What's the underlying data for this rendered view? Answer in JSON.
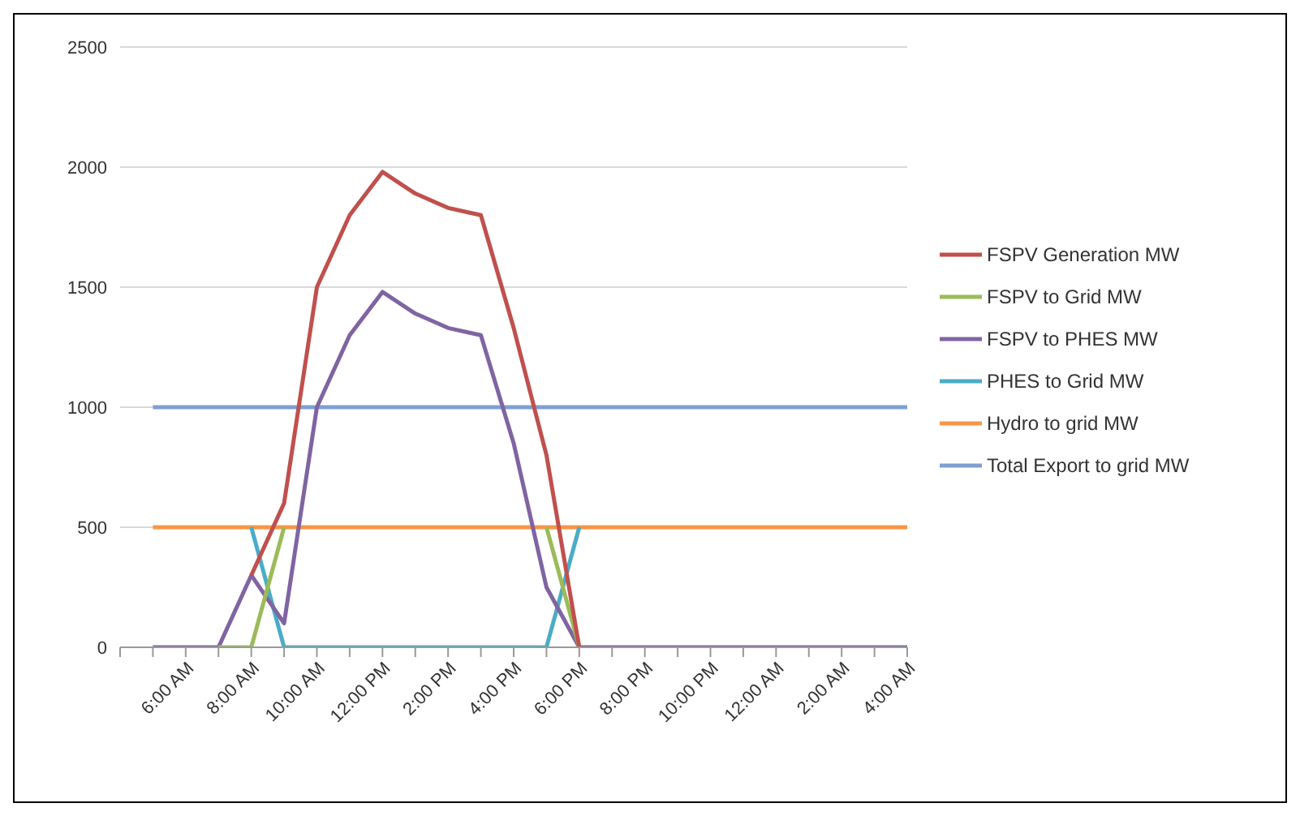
{
  "chart_data": {
    "type": "line",
    "categories": [
      null,
      null,
      "6:00 AM",
      null,
      "8:00 AM",
      null,
      "10:00 AM",
      null,
      "12:00 PM",
      null,
      "2:00 PM",
      null,
      "4:00 PM",
      null,
      "6:00 PM",
      null,
      "8:00 PM",
      null,
      "10:00 PM",
      null,
      "12:00 AM",
      null,
      "2:00 AM",
      null,
      "4:00 AM"
    ],
    "series": [
      {
        "name": "FSPV Generation MW",
        "color": "#c0504d",
        "values": [
          null,
          null,
          null,
          null,
          300,
          600,
          1500,
          1800,
          1980,
          1890,
          1830,
          1800,
          1330,
          800,
          0,
          null,
          null,
          null,
          null,
          null,
          null,
          null,
          null,
          null,
          null
        ]
      },
      {
        "name": "FSPV to Grid MW",
        "color": "#9bbb59",
        "values": [
          null,
          null,
          null,
          0,
          0,
          500,
          null,
          null,
          null,
          null,
          null,
          null,
          null,
          500,
          0,
          null,
          null,
          null,
          null,
          null,
          null,
          null,
          null,
          null,
          null
        ]
      },
      {
        "name": "FSPV to PHES MW",
        "color": "#8064a2",
        "values": [
          null,
          0,
          0,
          0,
          300,
          100,
          1000,
          1300,
          1480,
          1390,
          1330,
          1300,
          850,
          250,
          0,
          0,
          0,
          0,
          0,
          0,
          0,
          0,
          0,
          0,
          0
        ]
      },
      {
        "name": "PHES to Grid MW",
        "color": "#4bacc6",
        "values": [
          null,
          null,
          null,
          null,
          500,
          0,
          0,
          0,
          0,
          0,
          0,
          0,
          0,
          0,
          500,
          null,
          null,
          null,
          null,
          null,
          null,
          null,
          null,
          null,
          null
        ]
      },
      {
        "name": "Hydro to grid MW",
        "color": "#f79646",
        "values": [
          null,
          500,
          500,
          500,
          500,
          500,
          500,
          500,
          500,
          500,
          500,
          500,
          500,
          500,
          500,
          500,
          500,
          500,
          500,
          500,
          500,
          500,
          500,
          500,
          500
        ]
      },
      {
        "name": "Total Export to grid MW",
        "color": "#7f9fd3",
        "values": [
          null,
          1000,
          1000,
          1000,
          1000,
          1000,
          1000,
          1000,
          1000,
          1000,
          1000,
          1000,
          1000,
          1000,
          1000,
          1000,
          1000,
          1000,
          1000,
          1000,
          1000,
          1000,
          1000,
          1000,
          1000
        ]
      }
    ],
    "ylim": [
      0,
      2500
    ],
    "yticks": [
      0,
      500,
      1000,
      1500,
      2000,
      2500
    ],
    "grid": "y",
    "legend": "right"
  }
}
